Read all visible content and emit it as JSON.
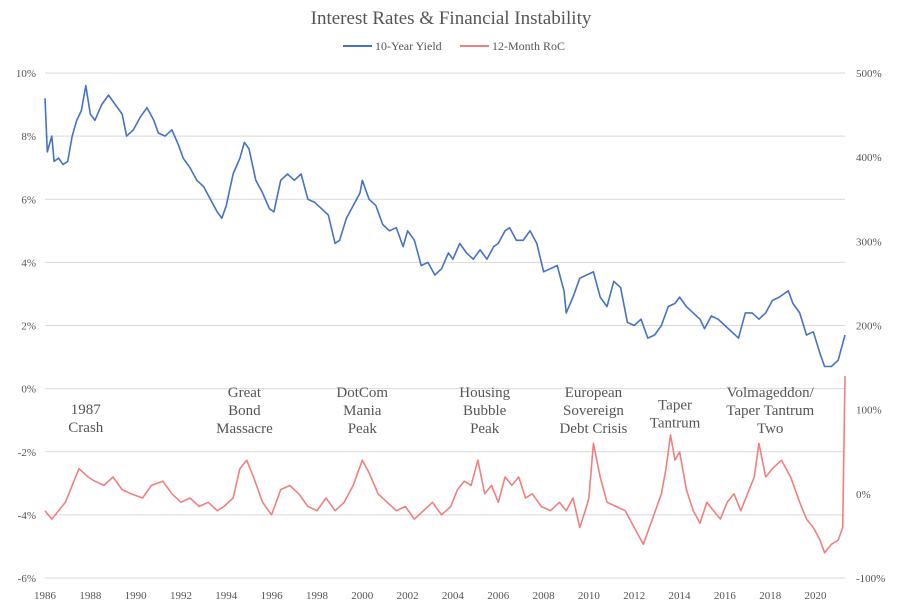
{
  "chart_data": {
    "type": "line",
    "title": "Interest Rates & Financial Instability",
    "legend_position": "top-center",
    "grid": true,
    "x_ticks": [
      "1986",
      "1988",
      "1990",
      "1992",
      "1994",
      "1996",
      "1998",
      "2000",
      "2002",
      "2004",
      "2006",
      "2008",
      "2010",
      "2012",
      "2014",
      "2016",
      "2018",
      "2020"
    ],
    "xlim": [
      1986.0,
      2021.3
    ],
    "y_left": {
      "ticks": [
        "10%",
        "8%",
        "6%",
        "4%",
        "2%",
        "0%",
        "-2%",
        "-4%",
        "-6%"
      ],
      "range": [
        -6,
        10
      ]
    },
    "y_right": {
      "ticks": [
        "500%",
        "400%",
        "300%",
        "200%",
        "100%",
        "0%",
        "-100%"
      ],
      "range": [
        -100,
        500
      ]
    },
    "colors": {
      "yield": "#4472c4",
      "roc": "#f08080"
    },
    "series": [
      {
        "name": "10-Year Yield",
        "axis": "left",
        "x": [
          1986.0,
          1986.1,
          1986.3,
          1986.4,
          1986.6,
          1986.8,
          1987.0,
          1987.2,
          1987.4,
          1987.6,
          1987.8,
          1988.0,
          1988.2,
          1988.5,
          1988.8,
          1989.1,
          1989.4,
          1989.6,
          1989.9,
          1990.2,
          1990.5,
          1990.8,
          1991.0,
          1991.3,
          1991.6,
          1991.9,
          1992.1,
          1992.4,
          1992.7,
          1993.0,
          1993.3,
          1993.6,
          1993.8,
          1994.0,
          1994.3,
          1994.6,
          1994.8,
          1995.0,
          1995.3,
          1995.6,
          1995.9,
          1996.1,
          1996.4,
          1996.7,
          1997.0,
          1997.3,
          1997.6,
          1997.9,
          1998.2,
          1998.5,
          1998.8,
          1999.0,
          1999.3,
          1999.6,
          1999.9,
          2000.0,
          2000.3,
          2000.6,
          2000.9,
          2001.2,
          2001.5,
          2001.8,
          2002.0,
          2002.3,
          2002.6,
          2002.9,
          2003.2,
          2003.5,
          2003.8,
          2004.0,
          2004.3,
          2004.6,
          2004.9,
          2005.2,
          2005.5,
          2005.8,
          2006.0,
          2006.3,
          2006.5,
          2006.8,
          2007.1,
          2007.4,
          2007.7,
          2008.0,
          2008.3,
          2008.6,
          2008.9,
          2009.0,
          2009.3,
          2009.6,
          2009.9,
          2010.2,
          2010.5,
          2010.8,
          2011.1,
          2011.4,
          2011.7,
          2012.0,
          2012.3,
          2012.6,
          2012.9,
          2013.2,
          2013.5,
          2013.8,
          2014.0,
          2014.3,
          2014.6,
          2014.9,
          2015.1,
          2015.4,
          2015.7,
          2016.0,
          2016.3,
          2016.6,
          2016.9,
          2017.2,
          2017.5,
          2017.8,
          2018.1,
          2018.4,
          2018.8,
          2019.0,
          2019.3,
          2019.6,
          2019.9,
          2020.2,
          2020.4,
          2020.7,
          2021.0,
          2021.3
        ],
        "values": [
          9.2,
          7.5,
          8.0,
          7.2,
          7.3,
          7.1,
          7.2,
          8.0,
          8.5,
          8.8,
          9.6,
          8.7,
          8.5,
          9.0,
          9.3,
          9.0,
          8.7,
          8.0,
          8.2,
          8.6,
          8.9,
          8.5,
          8.1,
          8.0,
          8.2,
          7.7,
          7.3,
          7.0,
          6.6,
          6.4,
          6.0,
          5.6,
          5.4,
          5.8,
          6.8,
          7.3,
          7.8,
          7.6,
          6.6,
          6.2,
          5.7,
          5.6,
          6.6,
          6.8,
          6.6,
          6.8,
          6.0,
          5.9,
          5.7,
          5.5,
          4.6,
          4.7,
          5.4,
          5.8,
          6.2,
          6.6,
          6.0,
          5.8,
          5.2,
          5.0,
          5.1,
          4.5,
          5.0,
          4.7,
          3.9,
          4.0,
          3.6,
          3.8,
          4.3,
          4.1,
          4.6,
          4.3,
          4.1,
          4.4,
          4.1,
          4.5,
          4.6,
          5.0,
          5.1,
          4.7,
          4.7,
          5.0,
          4.6,
          3.7,
          3.8,
          3.9,
          3.1,
          2.4,
          2.9,
          3.5,
          3.6,
          3.7,
          2.9,
          2.6,
          3.4,
          3.2,
          2.1,
          2.0,
          2.2,
          1.6,
          1.7,
          2.0,
          2.6,
          2.7,
          2.9,
          2.6,
          2.4,
          2.2,
          1.9,
          2.3,
          2.2,
          2.0,
          1.8,
          1.6,
          2.4,
          2.4,
          2.2,
          2.4,
          2.8,
          2.9,
          3.1,
          2.7,
          2.4,
          1.7,
          1.8,
          1.1,
          0.7,
          0.7,
          0.9,
          1.7
        ]
      },
      {
        "name": "12-Month RoC",
        "axis": "right",
        "x": [
          1986.0,
          1986.3,
          1986.6,
          1986.9,
          1987.2,
          1987.5,
          1987.7,
          1987.9,
          1988.2,
          1988.6,
          1989.0,
          1989.4,
          1989.8,
          1990.3,
          1990.7,
          1991.2,
          1991.6,
          1992.0,
          1992.4,
          1992.8,
          1993.2,
          1993.6,
          1993.9,
          1994.3,
          1994.6,
          1994.9,
          1995.2,
          1995.6,
          1996.0,
          1996.4,
          1996.8,
          1997.2,
          1997.6,
          1998.0,
          1998.4,
          1998.8,
          1999.2,
          1999.6,
          2000.0,
          2000.3,
          2000.7,
          2001.1,
          2001.5,
          2001.9,
          2002.3,
          2002.7,
          2003.1,
          2003.5,
          2003.9,
          2004.2,
          2004.5,
          2004.8,
          2005.1,
          2005.4,
          2005.7,
          2006.0,
          2006.3,
          2006.6,
          2006.9,
          2007.2,
          2007.5,
          2007.9,
          2008.3,
          2008.7,
          2009.0,
          2009.3,
          2009.6,
          2009.9,
          2010.0,
          2010.2,
          2010.5,
          2010.8,
          2011.2,
          2011.6,
          2012.0,
          2012.4,
          2012.8,
          2013.2,
          2013.4,
          2013.6,
          2013.8,
          2014.0,
          2014.3,
          2014.6,
          2014.9,
          2015.2,
          2015.5,
          2015.8,
          2016.1,
          2016.4,
          2016.7,
          2017.0,
          2017.3,
          2017.5,
          2017.8,
          2018.1,
          2018.5,
          2018.9,
          2019.3,
          2019.6,
          2019.9,
          2020.2,
          2020.4,
          2020.7,
          2021.0,
          2021.2,
          2021.3
        ],
        "values": [
          -20,
          -30,
          -20,
          -10,
          10,
          30,
          25,
          20,
          15,
          10,
          20,
          5,
          0,
          -5,
          10,
          15,
          0,
          -10,
          -5,
          -15,
          -10,
          -20,
          -15,
          -5,
          30,
          40,
          20,
          -10,
          -25,
          5,
          10,
          0,
          -15,
          -20,
          -5,
          -20,
          -10,
          10,
          40,
          25,
          0,
          -10,
          -20,
          -15,
          -30,
          -20,
          -10,
          -25,
          -15,
          5,
          15,
          10,
          40,
          0,
          10,
          -10,
          20,
          10,
          20,
          -5,
          0,
          -15,
          -20,
          -10,
          -20,
          -5,
          -40,
          -15,
          -5,
          60,
          20,
          -10,
          -15,
          -20,
          -40,
          -60,
          -30,
          0,
          30,
          70,
          40,
          50,
          5,
          -20,
          -35,
          -10,
          -20,
          -30,
          -10,
          0,
          -20,
          0,
          20,
          60,
          20,
          30,
          40,
          20,
          -10,
          -30,
          -40,
          -55,
          -70,
          -60,
          -55,
          -40,
          140
        ]
      }
    ],
    "annotations": [
      {
        "lines": [
          "1987",
          "Crash"
        ],
        "x": 1987.8,
        "y": 95
      },
      {
        "lines": [
          "Great",
          "Bond",
          "Massacre"
        ],
        "x": 1994.8,
        "y": 115
      },
      {
        "lines": [
          "DotCom",
          "Mania",
          "Peak"
        ],
        "x": 2000.0,
        "y": 115
      },
      {
        "lines": [
          "Housing",
          "Bubble",
          "Peak"
        ],
        "x": 2005.4,
        "y": 115
      },
      {
        "lines": [
          "European",
          "Sovereign",
          "Debt Crisis"
        ],
        "x": 2010.2,
        "y": 115
      },
      {
        "lines": [
          "Taper",
          "Tantrum"
        ],
        "x": 2013.8,
        "y": 100
      },
      {
        "lines": [
          "Volmageddon/",
          "Taper Tantrum",
          "Two"
        ],
        "x": 2018.0,
        "y": 115
      }
    ]
  }
}
